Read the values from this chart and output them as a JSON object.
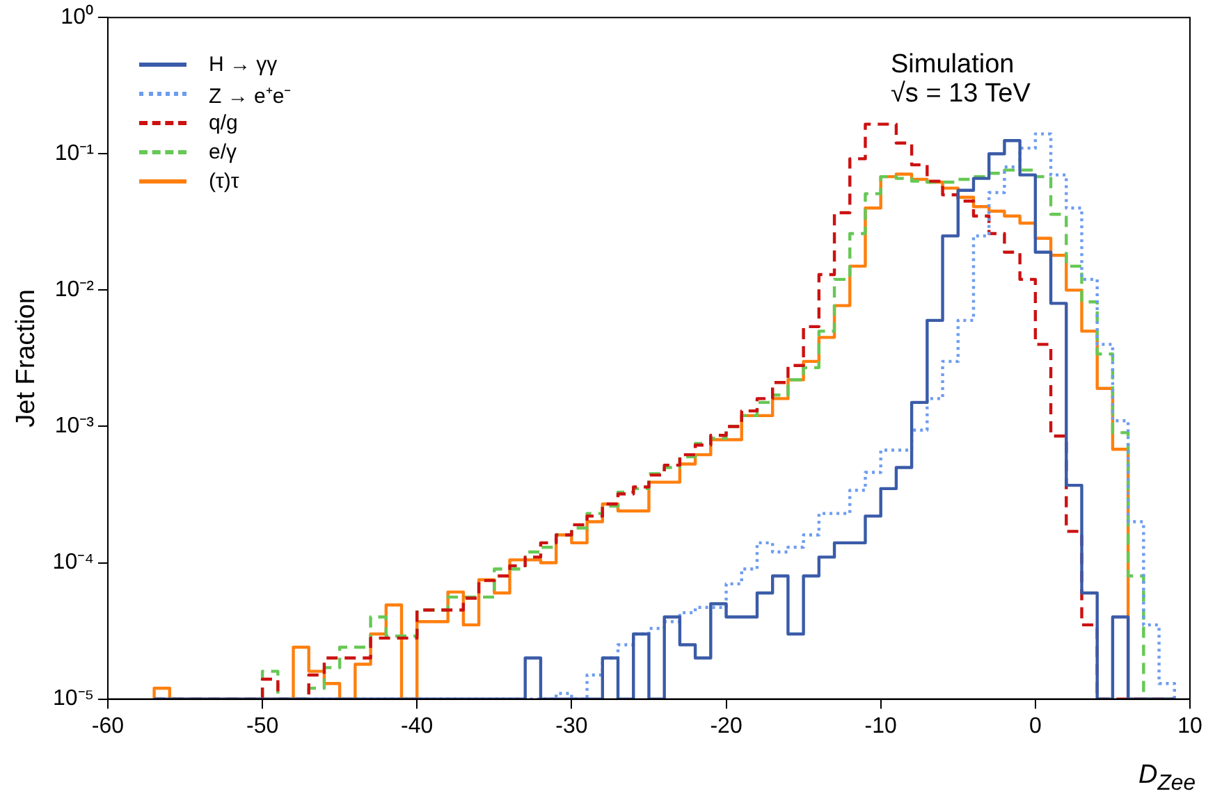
{
  "chart_data": {
    "type": "histogram",
    "xlabel": "D$_{Zee}$",
    "ylabel": "Jet Fraction",
    "annotations": [
      "Simulation",
      "√s = 13 TeV"
    ],
    "log": "y",
    "grid": false,
    "legend": "top left",
    "xlim": [
      -60,
      10
    ],
    "xticks": [
      -60,
      -50,
      -40,
      -30,
      -20,
      -10,
      0,
      10
    ],
    "ylim": [
      1e-05,
      1
    ],
    "yticks": [
      {
        "value": 1e-05,
        "label": "10⁻⁵"
      },
      {
        "value": 0.0001,
        "label": "10⁻⁴"
      },
      {
        "value": 0.001,
        "label": "10⁻³"
      },
      {
        "value": 0.01,
        "label": "10⁻²"
      },
      {
        "value": 0.1,
        "label": "10⁻¹"
      },
      {
        "value": 1,
        "label": "10⁰"
      }
    ],
    "bins": [
      -57,
      -56,
      -55,
      -54,
      -53,
      -52,
      -51,
      -50,
      -49,
      -48,
      -47,
      -46,
      -45,
      -44,
      -43,
      -42,
      -41,
      -40,
      -39,
      -38,
      -37,
      -36,
      -35,
      -34,
      -33,
      -32,
      -31,
      -30,
      -29,
      -28,
      -27,
      -26,
      -25,
      -24,
      -23,
      -22,
      -21,
      -20,
      -19,
      -18,
      -17,
      -16,
      -15,
      -14,
      -13,
      -12,
      -11,
      -10,
      -9,
      -8,
      -7,
      -6,
      -5,
      -4,
      -3,
      -2,
      -1,
      0,
      1,
      2,
      3,
      4,
      5,
      6,
      7,
      8,
      9
    ],
    "series": [
      {
        "name": "H → γγ",
        "color": "#3a5ba8",
        "line_style": "solid",
        "values": [
          null,
          null,
          null,
          null,
          null,
          null,
          null,
          null,
          null,
          null,
          null,
          null,
          null,
          null,
          null,
          null,
          null,
          null,
          null,
          null,
          null,
          null,
          null,
          null,
          2e-05,
          null,
          null,
          null,
          null,
          2e-05,
          null,
          3e-05,
          null,
          4e-05,
          2.5e-05,
          2e-05,
          5e-05,
          4e-05,
          4e-05,
          6e-05,
          8e-05,
          3e-05,
          8e-05,
          0.00011,
          0.00014,
          0.00014,
          0.00022,
          0.00035,
          0.0005,
          0.0015,
          0.006,
          0.025,
          0.054,
          0.066,
          0.1,
          0.125,
          0.07,
          0.019,
          0.008,
          0.00037,
          6e-05,
          null,
          4e-05,
          null,
          null,
          null
        ]
      },
      {
        "name": "Z → e⁺e⁻",
        "color": "#6d9cf0",
        "line_style": "dotted",
        "values": [
          null,
          null,
          null,
          null,
          null,
          null,
          null,
          null,
          null,
          null,
          null,
          null,
          null,
          null,
          null,
          null,
          null,
          null,
          null,
          null,
          null,
          null,
          null,
          null,
          null,
          null,
          1.1e-05,
          null,
          1.5e-05,
          2e-05,
          2.5e-05,
          3e-05,
          3.3e-05,
          3.7e-05,
          4.3e-05,
          4.7e-05,
          4.7e-05,
          7e-05,
          9e-05,
          0.00014,
          0.00012,
          0.00013,
          0.00016,
          0.00023,
          0.00023,
          0.00034,
          0.00046,
          0.00067,
          0.00067,
          0.00094,
          0.0016,
          0.003,
          0.006,
          0.025,
          0.052,
          0.08,
          0.11,
          0.14,
          0.07,
          0.04,
          0.012,
          0.004,
          0.0011,
          0.0002,
          3.5e-05,
          1.3e-05
        ]
      },
      {
        "name": "q/g",
        "color": "#cc1111",
        "line_style": "dashed",
        "values": [
          null,
          null,
          null,
          null,
          null,
          null,
          null,
          1.4e-05,
          null,
          null,
          1.5e-05,
          2e-05,
          2e-05,
          2e-05,
          2.8e-05,
          2.8e-05,
          2.8e-05,
          4.5e-05,
          4.5e-05,
          4.5e-05,
          5.5e-05,
          7.4e-05,
          8e-05,
          9.5e-05,
          0.00011,
          0.00014,
          0.00016,
          0.00019,
          0.00022,
          0.00027,
          0.00032,
          0.00036,
          0.00044,
          0.00052,
          0.00062,
          0.00073,
          0.00086,
          0.001,
          0.0013,
          0.0016,
          0.0021,
          0.0028,
          0.0054,
          0.013,
          0.037,
          0.092,
          0.165,
          0.165,
          0.12,
          0.083,
          0.063,
          0.05,
          0.045,
          0.035,
          0.026,
          0.019,
          0.012,
          0.004,
          0.00085,
          0.00017,
          3.5e-05,
          null,
          null,
          null,
          null,
          null
        ]
      },
      {
        "name": "e/γ",
        "color": "#66c855",
        "line_style": "dashed",
        "values": [
          null,
          null,
          null,
          null,
          null,
          null,
          null,
          1.6e-05,
          null,
          null,
          1.2e-05,
          1.7e-05,
          2.4e-05,
          2.4e-05,
          4e-05,
          2.9e-05,
          2.9e-05,
          4.5e-05,
          4.5e-05,
          5.6e-05,
          5.6e-05,
          5.6e-05,
          9e-05,
          9e-05,
          0.00012,
          0.00013,
          0.00016,
          0.00018,
          0.00023,
          0.00026,
          0.00033,
          0.00035,
          0.00045,
          0.0005,
          0.0006,
          0.00075,
          0.00082,
          0.001,
          0.0012,
          0.0015,
          0.0017,
          0.0022,
          0.0027,
          0.005,
          0.012,
          0.026,
          0.051,
          0.068,
          0.066,
          0.063,
          0.062,
          0.062,
          0.065,
          0.068,
          0.072,
          0.076,
          0.076,
          0.068,
          0.036,
          0.015,
          0.0082,
          0.0034,
          0.0009,
          8e-05,
          null,
          null
        ]
      },
      {
        "name": "(τ)τ",
        "color": "#ff7f0e",
        "line_style": "solid",
        "values": [
          1.2e-05,
          null,
          null,
          null,
          null,
          null,
          null,
          null,
          null,
          2.4e-05,
          1.6e-05,
          1.3e-05,
          null,
          1.8e-05,
          3e-05,
          4.9e-05,
          null,
          3.7e-05,
          3.7e-05,
          6.1e-05,
          3.5e-05,
          7.5e-05,
          6e-05,
          0.000105,
          0.000105,
          0.0001,
          0.00016,
          0.00014,
          0.0002,
          0.00027,
          0.00024,
          0.00024,
          0.00039,
          0.00039,
          0.00053,
          0.00062,
          0.0008,
          0.0008,
          0.0012,
          0.0012,
          0.0016,
          0.0022,
          0.003,
          0.0045,
          0.0077,
          0.015,
          0.04,
          0.068,
          0.071,
          0.065,
          0.062,
          0.056,
          0.048,
          0.041,
          0.038,
          0.035,
          0.031,
          0.024,
          0.018,
          0.01,
          0.005,
          0.0019,
          0.00068,
          null,
          null,
          null
        ]
      }
    ]
  }
}
